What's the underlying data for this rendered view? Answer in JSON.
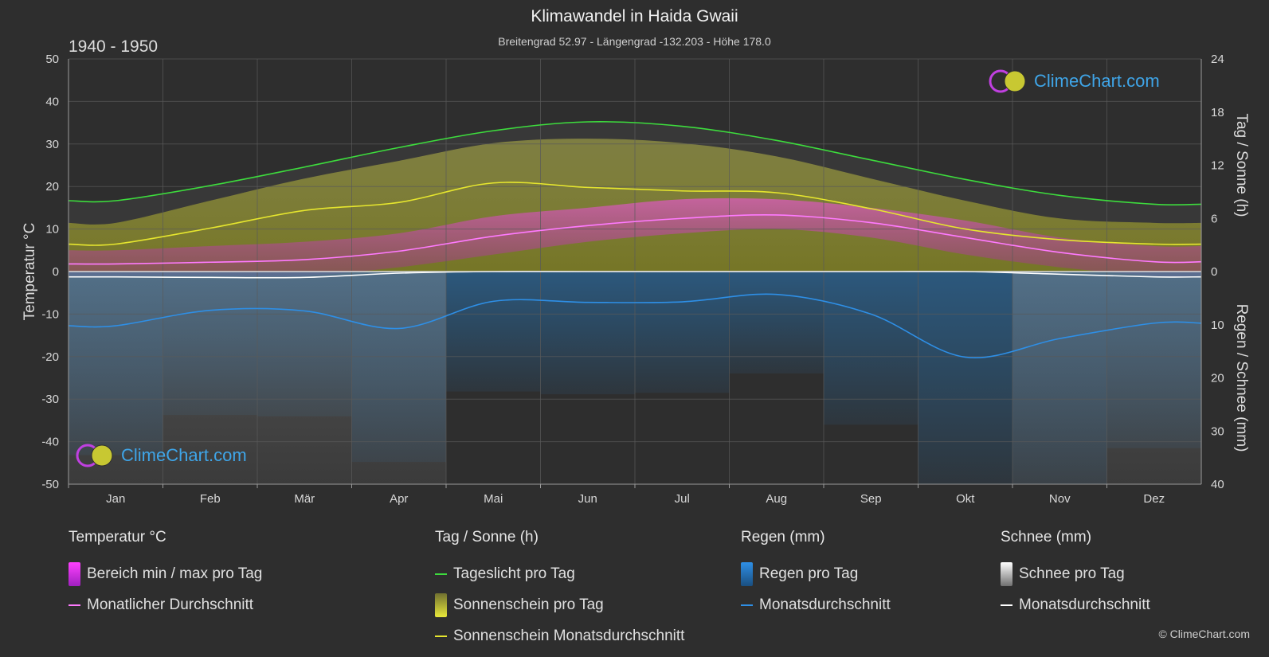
{
  "header": {
    "title": "Klimawandel in Haida Gwaii",
    "subtitle": "Breitengrad 52.97 - Längengrad -132.203 - Höhe 178.0",
    "period": "1940 - 1950"
  },
  "brand": {
    "logo_text": "ClimeChart.com",
    "copyright": "© ClimeChart.com"
  },
  "colors": {
    "background": "#2e2e2e",
    "daylight": "#3ddc3d",
    "sunshine_avg": "#e6e62e",
    "temp_avg": "#ff7aff",
    "rain_avg": "#2e8fe6",
    "snow_avg": "#ffffff",
    "temp_band": "#e040d0",
    "sunshine_band": "#8f8f2a",
    "rain_band": "#2a6fa8",
    "snow_band": "#8a8a8a"
  },
  "chart_data": {
    "type": "line",
    "title": "Klimawandel in Haida Gwaii",
    "x": [
      "Jan",
      "Feb",
      "Mär",
      "Apr",
      "Mai",
      "Jun",
      "Jul",
      "Aug",
      "Sep",
      "Okt",
      "Nov",
      "Dez"
    ],
    "axes": {
      "left": {
        "label": "Temperatur °C",
        "range": [
          -50,
          50
        ],
        "ticks": [
          50,
          40,
          30,
          20,
          10,
          0,
          -10,
          -20,
          -30,
          -40,
          -50
        ]
      },
      "right_top": {
        "label": "Tag / Sonne (h)",
        "range": [
          0,
          24
        ],
        "ticks": [
          24,
          18,
          12,
          6,
          0
        ]
      },
      "right_bottom": {
        "label": "Regen / Schnee (mm)",
        "range": [
          0,
          40
        ],
        "ticks": [
          0,
          10,
          20,
          30,
          40
        ]
      }
    },
    "series": [
      {
        "name": "Tageslicht pro Tag",
        "unit": "h",
        "values": [
          8.0,
          9.7,
          11.8,
          14.0,
          15.9,
          16.9,
          16.4,
          14.8,
          12.6,
          10.4,
          8.6,
          7.6
        ]
      },
      {
        "name": "Sonnenschein Monatsdurchschnitt",
        "unit": "h",
        "values": [
          3.1,
          4.9,
          6.9,
          7.8,
          10.0,
          9.5,
          9.1,
          8.9,
          7.1,
          4.8,
          3.6,
          3.1
        ]
      },
      {
        "name": "Monatlicher Durchschnitt",
        "unit": "°C",
        "values": [
          1.8,
          2.2,
          2.8,
          4.8,
          8.3,
          10.8,
          12.5,
          13.3,
          11.5,
          8.0,
          4.5,
          2.3
        ]
      },
      {
        "name": "Regen Monatsdurchschnitt",
        "unit": "mm",
        "values": [
          10.2,
          7.3,
          7.4,
          10.7,
          5.6,
          5.8,
          5.7,
          4.3,
          8.0,
          16.1,
          12.6,
          9.7
        ]
      },
      {
        "name": "Schnee Monatsdurchschnitt",
        "unit": "mm",
        "values": [
          1.0,
          1.1,
          1.1,
          0.3,
          0.0,
          0.0,
          0.0,
          0.0,
          0.0,
          0.0,
          0.5,
          1.0
        ]
      }
    ],
    "bands": {
      "sunshine_per_day_h": [
        5.5,
        8.0,
        10.5,
        12.5,
        14.5,
        15.0,
        14.5,
        13.0,
        10.5,
        8.0,
        6.0,
        5.5
      ],
      "temp_min_c": [
        -1,
        -1,
        -1,
        1,
        4,
        7,
        9,
        10,
        8,
        4,
        1,
        -1
      ],
      "temp_max_c": [
        5,
        6,
        7,
        9,
        13,
        15,
        17,
        17,
        15,
        12,
        8,
        6
      ]
    },
    "grid": true
  },
  "legend": {
    "groups": [
      {
        "head": "Temperatur °C",
        "items": [
          {
            "label": "Bereich min / max pro Tag",
            "kind": "box",
            "color": "#e040d0"
          },
          {
            "label": "Monatlicher Durchschnitt",
            "kind": "line",
            "color": "#ff7aff"
          }
        ]
      },
      {
        "head": "Tag / Sonne (h)",
        "items": [
          {
            "label": "Tageslicht pro Tag",
            "kind": "line",
            "color": "#3ddc3d"
          },
          {
            "label": "Sonnenschein pro Tag",
            "kind": "box",
            "color": "#d8d83a"
          },
          {
            "label": "Sonnenschein Monatsdurchschnitt",
            "kind": "line",
            "color": "#e6e62e"
          }
        ]
      },
      {
        "head": "Regen (mm)",
        "items": [
          {
            "label": "Regen pro Tag",
            "kind": "box",
            "color": "#2e8fe6"
          },
          {
            "label": "Monatsdurchschnitt",
            "kind": "line",
            "color": "#2e8fe6"
          }
        ]
      },
      {
        "head": "Schnee (mm)",
        "items": [
          {
            "label": "Schnee pro Tag",
            "kind": "box",
            "color": "#d0d0d0"
          },
          {
            "label": "Monatsdurchschnitt",
            "kind": "line",
            "color": "#ffffff"
          }
        ]
      }
    ]
  }
}
